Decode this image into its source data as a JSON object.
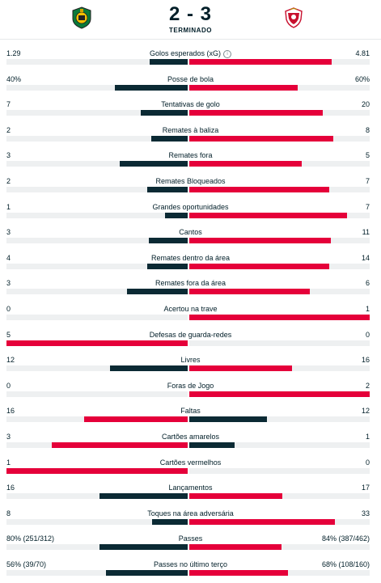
{
  "match": {
    "home_score": "2",
    "separator": "-",
    "away_score": "3",
    "status": "TERMINADO",
    "home_logo_icon": "rio-ave-crest-icon",
    "away_logo_icon": "benfica-crest-icon"
  },
  "colors": {
    "dark_bar": "#0b2a34",
    "red_bar": "#e5003a",
    "track": "#eef0f1"
  },
  "stats": [
    {
      "label": "Golos esperados (xG)",
      "home": "1.29",
      "away": "4.81",
      "info": "i",
      "home_share": 0.211,
      "away_share": 0.789,
      "home_color": "dark",
      "away_color": "red"
    },
    {
      "label": "Posse de bola",
      "home": "40%",
      "away": "60%",
      "home_share": 0.4,
      "away_share": 0.6,
      "home_color": "dark",
      "away_color": "red"
    },
    {
      "label": "Tentativas de golo",
      "home": "7",
      "away": "20",
      "home_share": 0.259,
      "away_share": 0.741,
      "home_color": "dark",
      "away_color": "red"
    },
    {
      "label": "Remates à baliza",
      "home": "2",
      "away": "8",
      "home_share": 0.2,
      "away_share": 0.8,
      "home_color": "dark",
      "away_color": "red"
    },
    {
      "label": "Remates fora",
      "home": "3",
      "away": "5",
      "home_share": 0.375,
      "away_share": 0.625,
      "home_color": "dark",
      "away_color": "red"
    },
    {
      "label": "Remates Bloqueados",
      "home": "2",
      "away": "7",
      "home_share": 0.222,
      "away_share": 0.778,
      "home_color": "dark",
      "away_color": "red"
    },
    {
      "label": "Grandes oportunidades",
      "home": "1",
      "away": "7",
      "home_share": 0.125,
      "away_share": 0.875,
      "home_color": "dark",
      "away_color": "red"
    },
    {
      "label": "Cantos",
      "home": "3",
      "away": "11",
      "home_share": 0.214,
      "away_share": 0.786,
      "home_color": "dark",
      "away_color": "red"
    },
    {
      "label": "Remates dentro da área",
      "home": "4",
      "away": "14",
      "home_share": 0.222,
      "away_share": 0.778,
      "home_color": "dark",
      "away_color": "red"
    },
    {
      "label": "Remates fora da área",
      "home": "3",
      "away": "6",
      "home_share": 0.333,
      "away_share": 0.667,
      "home_color": "dark",
      "away_color": "red"
    },
    {
      "label": "Acertou na trave",
      "home": "0",
      "away": "1",
      "home_share": 0.0,
      "away_share": 1.0,
      "home_color": "dark",
      "away_color": "red"
    },
    {
      "label": "Defesas de guarda-redes",
      "home": "5",
      "away": "0",
      "home_share": 1.0,
      "away_share": 0.0,
      "home_color": "red",
      "away_color": "dark"
    },
    {
      "label": "Livres",
      "home": "12",
      "away": "16",
      "home_share": 0.429,
      "away_share": 0.571,
      "home_color": "dark",
      "away_color": "red"
    },
    {
      "label": "Foras de Jogo",
      "home": "0",
      "away": "2",
      "home_share": 0.0,
      "away_share": 1.0,
      "home_color": "dark",
      "away_color": "red"
    },
    {
      "label": "Faltas",
      "home": "16",
      "away": "12",
      "home_share": 0.571,
      "away_share": 0.429,
      "home_color": "red",
      "away_color": "dark"
    },
    {
      "label": "Cartões amarelos",
      "home": "3",
      "away": "1",
      "home_share": 0.75,
      "away_share": 0.25,
      "home_color": "red",
      "away_color": "dark"
    },
    {
      "label": "Cartões vermelhos",
      "home": "1",
      "away": "0",
      "home_share": 1.0,
      "away_share": 0.0,
      "home_color": "red",
      "away_color": "dark"
    },
    {
      "label": "Lançamentos",
      "home": "16",
      "away": "17",
      "home_share": 0.485,
      "away_share": 0.515,
      "home_color": "dark",
      "away_color": "red"
    },
    {
      "label": "Toques na área adversária",
      "home": "8",
      "away": "33",
      "home_share": 0.195,
      "away_share": 0.805,
      "home_color": "dark",
      "away_color": "red"
    },
    {
      "label": "Passes",
      "home": "80% (251/312)",
      "away": "84% (387/462)",
      "home_share": 0.488,
      "away_share": 0.512,
      "home_color": "dark",
      "away_color": "red"
    },
    {
      "label": "Passes no último terço",
      "home": "56% (39/70)",
      "away": "68% (108/160)",
      "home_share": 0.452,
      "away_share": 0.548,
      "home_color": "dark",
      "away_color": "red"
    }
  ]
}
